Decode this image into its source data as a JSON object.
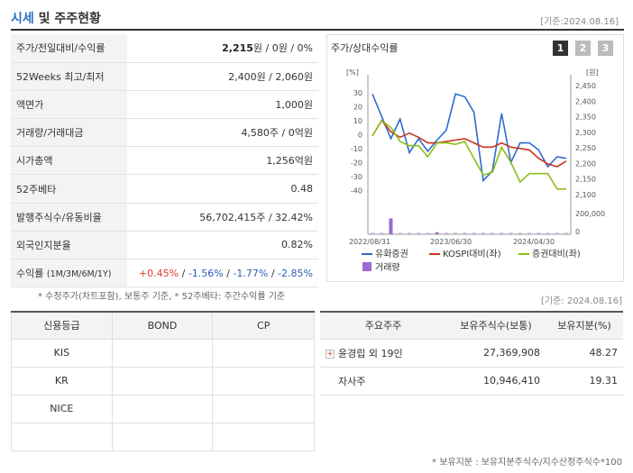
{
  "header": {
    "title_a": "시세",
    "title_b": " 및 주주현황",
    "date": "[기준:2024.08.16]"
  },
  "stock": {
    "rows": [
      {
        "label": "주가/전일대비/수익률",
        "value_bold": "2,215",
        "value_rest": "원 / 0원 / 0%"
      },
      {
        "label": "52Weeks 최고/최저",
        "value": "2,400원 / 2,060원"
      },
      {
        "label": "액면가",
        "value": "1,000원"
      },
      {
        "label": "거래량/거래대금",
        "value": "4,580주 / 0억원"
      },
      {
        "label": "시가총액",
        "value": "1,256억원"
      },
      {
        "label": "52주베타",
        "value": "0.48"
      },
      {
        "label": "발행주식수/유동비율",
        "value": "56,702,415주 / 32.42%"
      },
      {
        "label": "외국인지분율",
        "value": "0.82%"
      }
    ],
    "return_label": "수익률",
    "return_period": "(1M/3M/6M/1Y)",
    "returns": [
      "+0.45%",
      "-1.56%",
      "-1.77%",
      "-2.85%"
    ],
    "sep": " / "
  },
  "note_left": "* 수정주가(차트포함), 보통주 기준, * 52주베타: 주간수익률 기준",
  "note_right": "[기준: 2024.08.16]",
  "chart": {
    "title": "주가/상대수익률",
    "tabs": [
      "1",
      "2",
      "3"
    ],
    "left_unit": "[%]",
    "right_unit": "[원]",
    "legend": [
      "유화증권",
      "KOSPI대비(좌)",
      "증권대비(좌)",
      "거래량"
    ],
    "colors": {
      "price": "#2f6bd0",
      "kospi": "#c8341e",
      "sector": "#8cbe1c",
      "volume": "#9b6ad2"
    }
  },
  "chart_data": {
    "type": "line",
    "x_ticks": [
      "2022/08/31",
      "2023/06/30",
      "2024/04/30"
    ],
    "y_left_ticks": [
      30,
      20,
      10,
      0,
      -10,
      -20,
      -30,
      -40
    ],
    "y_right_ticks": [
      "2,450",
      "2,400",
      "2,350",
      "2,300",
      "2,250",
      "2,200",
      "2,150",
      "2,100"
    ],
    "volume_ticks": [
      "200,000",
      "0"
    ],
    "ylim_left": [
      -43,
      35
    ],
    "series": [
      {
        "name": "유화증권",
        "axis": "left",
        "values": [
          29,
          13,
          -3,
          11,
          -13,
          -3,
          -12,
          -4,
          3,
          29,
          27,
          16,
          -33,
          -26,
          15,
          -20,
          -6,
          -6,
          -11,
          -23,
          -16,
          -17
        ]
      },
      {
        "name": "KOSPI대비(좌)",
        "axis": "left",
        "values": [
          -1,
          10,
          2,
          -2,
          1,
          -2,
          -6,
          -6,
          -5,
          -4,
          -3,
          -6,
          -9,
          -9,
          -6,
          -9,
          -10,
          -11,
          -17,
          -21,
          -23,
          -19
        ]
      },
      {
        "name": "증권대비(좌)",
        "axis": "left",
        "values": [
          -1,
          10,
          5,
          -5,
          -8,
          -8,
          -16,
          -6,
          -6,
          -7,
          -5,
          -17,
          -29,
          -27,
          -9,
          -20,
          -34,
          -28,
          -28,
          -28,
          -39,
          -39
        ]
      }
    ],
    "volume": [
      0,
      0,
      160000,
      0,
      0,
      0,
      0,
      20000,
      0,
      0,
      0,
      0,
      0,
      0,
      0,
      0,
      0,
      0,
      0,
      0,
      0,
      0
    ]
  },
  "credit": {
    "headers": [
      "신용등급",
      "BOND",
      "CP"
    ],
    "rows": [
      [
        "KIS",
        "",
        ""
      ],
      [
        "KR",
        "",
        ""
      ],
      [
        "NICE",
        "",
        ""
      ],
      [
        "",
        "",
        ""
      ]
    ]
  },
  "holders": {
    "headers": [
      "주요주주",
      "보유주식수(보통)",
      "보유지분(%)"
    ],
    "rows": [
      {
        "name": "윤경립 외 19인",
        "shares": "27,369,908",
        "pct": "48.27",
        "expand": "+"
      },
      {
        "name": "자사주",
        "shares": "10,946,410",
        "pct": "19.31"
      }
    ],
    "note": "* 보유지분 : 보유지분주식수/지수산정주식수*100"
  }
}
